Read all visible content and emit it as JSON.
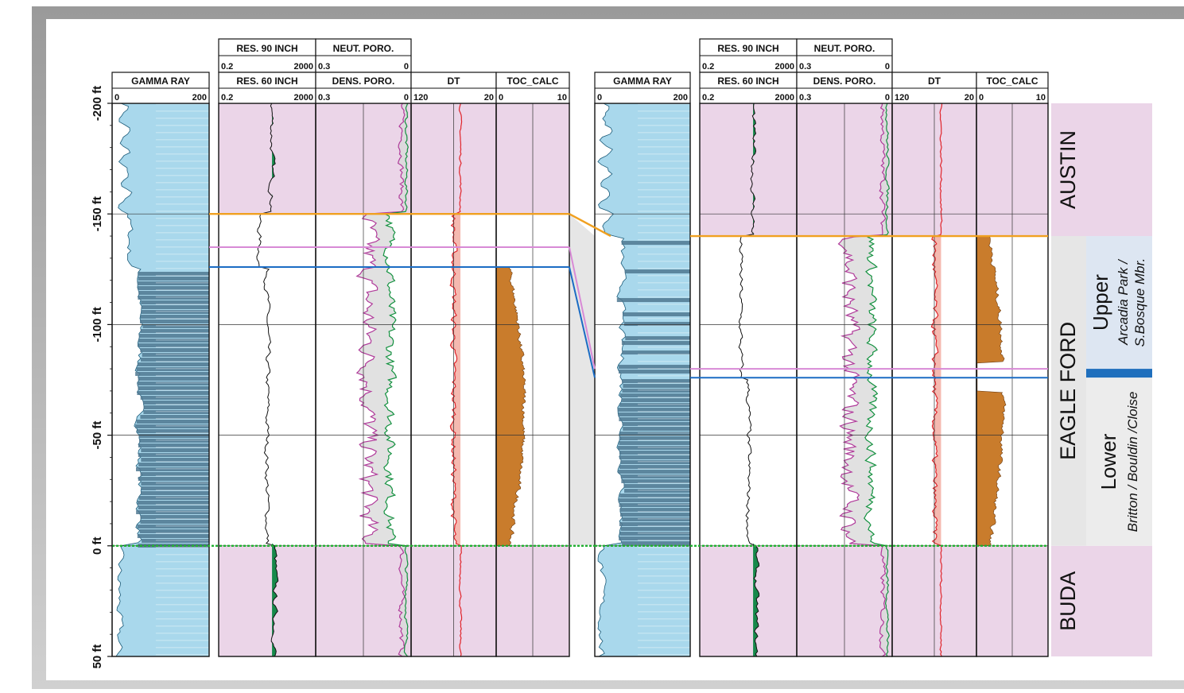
{
  "colors": {
    "austin": "#ebd5e8",
    "buda": "#ebd5e8",
    "eagle_ford_zone": "#e6e6e6",
    "upper_panel": "#dde6f2",
    "lower_panel": "#ececec",
    "divider_band": "#1f6fbd",
    "gr_light": "#a9d8ec",
    "gr_dark": "#4f7891",
    "res_fill": "#16894a",
    "dt_fill": "#f5b9b0",
    "dt_curve": "#e0242a",
    "toc_fill": "#c97c2c",
    "neut_curve": "#b03a9a",
    "dens_curve": "#13913f",
    "top_austin_line": "#f0a020",
    "top_buda_line": "#20b030",
    "pink_marker": "#d88ad6",
    "blue_marker": "#1b6cc4"
  },
  "chart_data": {
    "type": "well-log-correlation",
    "depth_axis": {
      "ticks": [
        "-200 ft",
        "-150 ft",
        "-100 ft",
        "-50 ft",
        "0 ft",
        "50 ft"
      ],
      "range_ft": [
        -200,
        50
      ]
    },
    "wells": [
      {
        "tracks": [
          {
            "name": "GAMMA RAY",
            "scale_min": "0",
            "scale_max": "200"
          },
          {
            "name": "RES. 90 INCH",
            "scale_min": "0.2",
            "scale_max": "2000"
          },
          {
            "name": "RES. 60 INCH",
            "scale_min": "0.2",
            "scale_max": "2000"
          },
          {
            "name": "NEUT. PORO.",
            "scale_min": "0.3",
            "scale_max": "0"
          },
          {
            "name": "DENS. PORO.",
            "scale_min": "0.3",
            "scale_max": "0"
          },
          {
            "name": "DT",
            "scale_min": "120",
            "scale_max": "20"
          },
          {
            "name": "TOC_CALC",
            "scale_min": "0",
            "scale_max": "10"
          }
        ],
        "tops_ft": {
          "austin_base": -150,
          "pink_marker": -135,
          "blue_marker": -126,
          "buda_top": 0
        }
      },
      {
        "tracks": [
          {
            "name": "GAMMA RAY",
            "scale_min": "0",
            "scale_max": "200"
          },
          {
            "name": "RES. 90 INCH",
            "scale_min": "0.2",
            "scale_max": "2000"
          },
          {
            "name": "RES. 60 INCH",
            "scale_min": "0.2",
            "scale_max": "2000"
          },
          {
            "name": "NEUT. PORO.",
            "scale_min": "0.3",
            "scale_max": "0"
          },
          {
            "name": "DENS. PORO.",
            "scale_min": "0.3",
            "scale_max": "0"
          },
          {
            "name": "DT",
            "scale_min": "120",
            "scale_max": "20"
          },
          {
            "name": "TOC_CALC",
            "scale_min": "0",
            "scale_max": "10"
          }
        ],
        "tops_ft": {
          "austin_base": -140,
          "pink_marker": -80,
          "blue_marker": -76,
          "buda_top": 0
        }
      }
    ],
    "zones": [
      {
        "label": "AUSTIN",
        "top_ft": -200,
        "base_ft": -140
      },
      {
        "label": "EAGLE FORD",
        "top_ft": -140,
        "base_ft": 0,
        "subzones": [
          {
            "label": "Upper",
            "sublabel_1": "Arcadia Park /",
            "sublabel_2": "S.Bosque Mbr.",
            "top_ft": -140,
            "base_ft": -80
          },
          {
            "label": "Lower",
            "sublabel_1": "Britton / Bouldin /Cloise",
            "top_ft": -76,
            "base_ft": 0
          }
        ]
      },
      {
        "label": "BUDA",
        "top_ft": 0,
        "base_ft": 50
      }
    ]
  }
}
